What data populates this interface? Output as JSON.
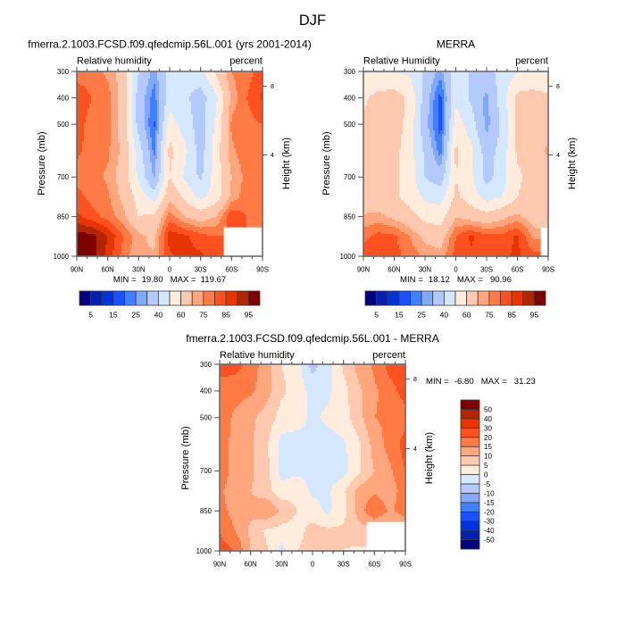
{
  "figure": {
    "title": "DJF"
  },
  "colormap": [
    "#02007f",
    "#0520b0",
    "#0033e0",
    "#1a50ff",
    "#4080ff",
    "#80a8ff",
    "#b3c9ff",
    "#d6e8ff",
    "#ffecdc",
    "#ffc9b0",
    "#ffa67e",
    "#ff7a45",
    "#ff5020",
    "#e63500",
    "#b32400",
    "#800000"
  ],
  "chart_data": [
    {
      "type": "heatmap",
      "title": "fmerra.2.1003.FCSD.f09.qfedcmip.56L.001 (yrs 2001-2014)",
      "left_string": "Relative humidity",
      "right_string": "percent",
      "ylabel": "Pressure (mb)",
      "ylabel_right": "Height (km)",
      "x": [
        90,
        75,
        60,
        45,
        30,
        15,
        0,
        -15,
        -30,
        -45,
        -60,
        -75,
        -90
      ],
      "y": [
        300,
        400,
        500,
        600,
        700,
        775,
        850,
        925,
        1000
      ],
      "z": [
        [
          78,
          77,
          74,
          66,
          40,
          27,
          44,
          45,
          47,
          62,
          75,
          78,
          82
        ],
        [
          83,
          80,
          77,
          67,
          35,
          22,
          45,
          42,
          35,
          48,
          72,
          80,
          86
        ],
        [
          82,
          78,
          77,
          66,
          36,
          19,
          55,
          45,
          35,
          52,
          76,
          78,
          80
        ],
        [
          81,
          78,
          76,
          68,
          45,
          23,
          63,
          52,
          35,
          55,
          74,
          78,
          79
        ],
        [
          78,
          77,
          74,
          66,
          48,
          29,
          60,
          48,
          38,
          55,
          70,
          77,
          78
        ],
        [
          82,
          78,
          76,
          68,
          56,
          45,
          68,
          58,
          47,
          55,
          72,
          78,
          80
        ],
        [
          86,
          82,
          78,
          72,
          60,
          62,
          78,
          70,
          66,
          70,
          84,
          80,
          78
        ],
        [
          98,
          97,
          90,
          80,
          72,
          68,
          88,
          86,
          82,
          80,
          null,
          null,
          null
        ],
        [
          98,
          97,
          88,
          78,
          70,
          71,
          84,
          87,
          86,
          82,
          null,
          null,
          null
        ]
      ],
      "xlim": [
        90,
        -90
      ],
      "ylim": [
        300,
        1000
      ],
      "x_ticks": [
        {
          "value": 90,
          "label": "90N"
        },
        {
          "value": 60,
          "label": "60N"
        },
        {
          "value": 30,
          "label": "30N"
        },
        {
          "value": 0,
          "label": "0"
        },
        {
          "value": -30,
          "label": "30S"
        },
        {
          "value": -60,
          "label": "60S"
        },
        {
          "value": -90,
          "label": "90S"
        }
      ],
      "x_minor_step": 10,
      "y_ticks": [
        {
          "value": 300,
          "label": "300"
        },
        {
          "value": 400,
          "label": "400"
        },
        {
          "value": 500,
          "label": "500"
        },
        {
          "value": 700,
          "label": "700"
        },
        {
          "value": 850,
          "label": "850"
        },
        {
          "value": 1000,
          "label": "1000"
        }
      ],
      "y_right_ticks": [
        {
          "value_km": 8,
          "label": "8"
        },
        {
          "value_km": 4,
          "label": "4"
        }
      ],
      "stats": {
        "min_label": "MIN =",
        "min": "19.80",
        "max_label": "MAX =",
        "max": "119.67"
      },
      "levels": [
        5,
        10,
        15,
        20,
        25,
        30,
        40,
        50,
        60,
        70,
        75,
        80,
        85,
        90,
        95
      ],
      "colorbar": {
        "orientation": "horizontal",
        "labels": [
          5,
          15,
          25,
          40,
          60,
          75,
          85,
          95
        ]
      }
    },
    {
      "type": "heatmap",
      "title": "MERRA",
      "left_string": "Relative Humidity",
      "right_string": "percent",
      "ylabel": "Pressure (mb)",
      "ylabel_right": "Height (km)",
      "x": [
        90,
        75,
        60,
        45,
        30,
        15,
        0,
        -15,
        -30,
        -45,
        -60,
        -75,
        -90
      ],
      "y": [
        300,
        400,
        500,
        600,
        700,
        775,
        850,
        925,
        1000
      ],
      "z": [
        [
          49,
          49,
          49,
          48,
          38,
          27,
          48,
          38,
          35,
          45,
          49,
          49,
          49
        ],
        [
          58,
          64,
          65,
          58,
          35,
          18,
          48,
          38,
          28,
          45,
          63,
          65,
          62
        ],
        [
          62,
          64,
          64,
          57,
          33,
          17,
          55,
          45,
          27,
          42,
          62,
          64,
          64
        ],
        [
          64,
          64,
          63,
          55,
          38,
          22,
          62,
          52,
          35,
          44,
          62,
          64,
          72
        ],
        [
          63,
          63,
          62,
          55,
          40,
          34,
          60,
          52,
          36,
          46,
          58,
          64,
          62
        ],
        [
          64,
          64,
          62,
          56,
          48,
          46,
          62,
          55,
          46,
          50,
          60,
          64,
          62
        ],
        [
          71,
          72,
          68,
          64,
          57,
          55,
          70,
          66,
          64,
          68,
          72,
          66,
          60
        ],
        [
          78,
          82,
          81,
          75,
          68,
          66,
          80,
          86,
          82,
          82,
          86,
          74,
          null
        ],
        [
          84,
          85,
          82,
          78,
          74,
          72,
          82,
          84,
          80,
          84,
          86,
          82,
          null
        ]
      ],
      "xlim": [
        90,
        -90
      ],
      "ylim": [
        300,
        1000
      ],
      "x_ticks": [
        {
          "value": 90,
          "label": "90N"
        },
        {
          "value": 60,
          "label": "60N"
        },
        {
          "value": 30,
          "label": "30N"
        },
        {
          "value": 0,
          "label": "0"
        },
        {
          "value": -30,
          "label": "30S"
        },
        {
          "value": -60,
          "label": "60S"
        },
        {
          "value": -90,
          "label": "90S"
        }
      ],
      "x_minor_step": 10,
      "y_ticks": [
        {
          "value": 300,
          "label": "300"
        },
        {
          "value": 400,
          "label": "400"
        },
        {
          "value": 500,
          "label": "500"
        },
        {
          "value": 700,
          "label": "700"
        },
        {
          "value": 850,
          "label": "850"
        },
        {
          "value": 1000,
          "label": "1000"
        }
      ],
      "y_right_ticks": [
        {
          "value_km": 8,
          "label": "8"
        },
        {
          "value_km": 4,
          "label": "4"
        }
      ],
      "stats": {
        "min_label": "MIN =",
        "min": "18.12",
        "max_label": "MAX =",
        "max": "90.96"
      },
      "levels": [
        5,
        10,
        15,
        20,
        25,
        30,
        40,
        50,
        60,
        70,
        75,
        80,
        85,
        90,
        95
      ],
      "colorbar": {
        "orientation": "horizontal",
        "labels": [
          5,
          15,
          25,
          40,
          60,
          75,
          85,
          95
        ]
      }
    },
    {
      "type": "heatmap",
      "title": "fmerra.2.1003.FCSD.f09.qfedcmip.56L.001 - MERRA",
      "left_string": "Relative humidity",
      "right_string": "percent",
      "ylabel": "Pressure (mb)",
      "ylabel_right": "Height (km)",
      "x": [
        90,
        75,
        60,
        45,
        30,
        15,
        0,
        -15,
        -30,
        -45,
        -60,
        -75,
        -90
      ],
      "y": [
        300,
        400,
        500,
        600,
        700,
        775,
        850,
        925,
        1000
      ],
      "z": [
        [
          22,
          22,
          18,
          12,
          5,
          2,
          -7,
          -2,
          6,
          12,
          16,
          22,
          24
        ],
        [
          18,
          17,
          16,
          12,
          6,
          3,
          -2,
          -1,
          3,
          9,
          14,
          18,
          22
        ],
        [
          18,
          14,
          11,
          8,
          3,
          2,
          -1,
          1,
          3,
          8,
          15,
          16,
          18
        ],
        [
          18,
          13,
          11,
          6,
          -2,
          -2,
          -1,
          -2,
          -1,
          4,
          12,
          17,
          22
        ],
        [
          18,
          13,
          11,
          7,
          -2,
          -1,
          -1,
          -2,
          -2,
          4,
          10,
          14,
          20
        ],
        [
          16,
          12,
          10,
          7,
          2,
          3,
          -1,
          -1,
          4,
          12,
          14,
          12,
          18
        ],
        [
          17,
          13,
          11,
          15,
          9,
          5,
          2,
          -1,
          3,
          12,
          20,
          14,
          18
        ],
        [
          20,
          15,
          9,
          4,
          3,
          3,
          7,
          6,
          6,
          8,
          null,
          null,
          null
        ],
        [
          22,
          20,
          10,
          6,
          -2,
          5,
          7,
          6,
          5,
          4,
          null,
          null,
          null
        ]
      ],
      "xlim": [
        90,
        -90
      ],
      "ylim": [
        300,
        1000
      ],
      "x_ticks": [
        {
          "value": 90,
          "label": "90N"
        },
        {
          "value": 60,
          "label": "60N"
        },
        {
          "value": 30,
          "label": "30N"
        },
        {
          "value": 0,
          "label": "0"
        },
        {
          "value": -30,
          "label": "30S"
        },
        {
          "value": -60,
          "label": "60S"
        },
        {
          "value": -90,
          "label": "90S"
        }
      ],
      "x_minor_step": 10,
      "y_ticks": [
        {
          "value": 300,
          "label": "300"
        },
        {
          "value": 400,
          "label": "400"
        },
        {
          "value": 500,
          "label": "500"
        },
        {
          "value": 700,
          "label": "700"
        },
        {
          "value": 850,
          "label": "850"
        },
        {
          "value": 1000,
          "label": "1000"
        }
      ],
      "y_right_ticks": [
        {
          "value_km": 8,
          "label": "8"
        },
        {
          "value_km": 4,
          "label": "4"
        }
      ],
      "stats": {
        "min_label": "MIN =",
        "min": "-6.80",
        "max_label": "MAX =",
        "max": "31.23"
      },
      "levels": [
        -50,
        -40,
        -30,
        -20,
        -15,
        -10,
        -5,
        0,
        5,
        10,
        15,
        20,
        30,
        40,
        50
      ],
      "colorbar": {
        "orientation": "vertical",
        "labels": [
          -50,
          -40,
          -30,
          -20,
          -15,
          -10,
          -5,
          0,
          5,
          10,
          15,
          20,
          30,
          40,
          50
        ]
      }
    }
  ]
}
